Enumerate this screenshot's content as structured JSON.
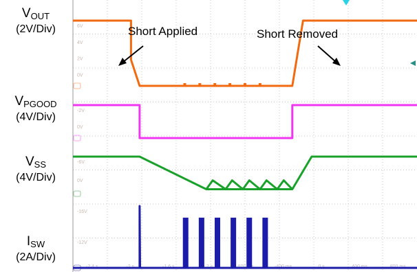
{
  "chart_data": {
    "type": "line",
    "title": "",
    "time_axis_labels": [
      "-2.4 s",
      "-2 s",
      "-1.6 s",
      "-1.2 s",
      "-800 ms",
      "-400 ms",
      "0 s",
      "400 ms",
      "800 ms"
    ],
    "channels": [
      {
        "name_main": "V",
        "name_sub": "OUT",
        "scale": "(2V/Div)",
        "color": "#f26a10",
        "ref_labels": [
          "6V",
          "4V",
          "2V",
          "0V"
        ],
        "x": [
          0,
          1.35,
          1.35,
          1.55,
          3.9,
          5.1,
          5.25,
          5.35,
          8
        ],
        "y": [
          5.0,
          5.0,
          2.0,
          0.0,
          0.0,
          0.0,
          3.0,
          5.0,
          5.0
        ]
      },
      {
        "name_main": "V",
        "name_sub": "PGOOD",
        "scale": "(4V/Div)",
        "color": "#f036f0",
        "ref_labels": [
          "-2V",
          "0V"
        ],
        "x": [
          0,
          1.55,
          1.55,
          5.1,
          5.1,
          8
        ],
        "y": [
          5.0,
          5.0,
          0.0,
          0.0,
          5.0,
          5.0
        ]
      },
      {
        "name_main": "V",
        "name_sub": "SS",
        "scale": "(4V/Div)",
        "color": "#19a12a",
        "ref_labels": [
          "-6V",
          "0V"
        ],
        "x": [
          0,
          1.55,
          3.1,
          5.1,
          5.55,
          8
        ],
        "y": [
          5.0,
          5.0,
          0.6,
          0.6,
          5.0,
          5.0
        ]
      },
      {
        "name_main": "I",
        "name_sub": "SW",
        "scale": "(2A/Div)",
        "color": "#1c1caa",
        "ref_labels": [
          "-16V",
          "-12V"
        ],
        "x": [
          0,
          1.55,
          1.55,
          1.56,
          8
        ],
        "y": [
          0.0,
          0.0,
          8.0,
          0.0,
          0.0
        ]
      }
    ],
    "annotations": [
      "Short Applied",
      "Short Removed"
    ]
  }
}
